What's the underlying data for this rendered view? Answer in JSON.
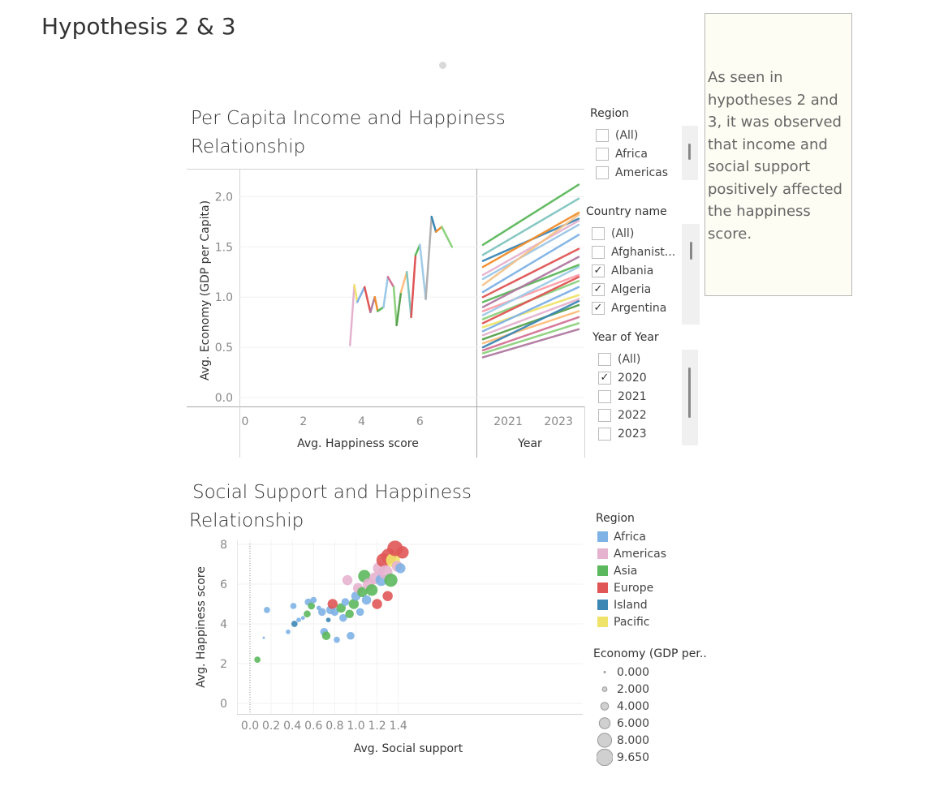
{
  "page": {
    "title": "Hypothesis 2 & 3",
    "note": "As seen in hypotheses 2 and 3, it was observed that income and social support positively affected the happiness score."
  },
  "chart1": {
    "title_line1": "Per Capita Income and Happiness",
    "title_line2": "Relationship",
    "ylabel": "Avg. Economy (GDP per Capita)",
    "xlabel_left": "Avg. Happiness score",
    "xlabel_right": "Year",
    "yticks": [
      "2.0",
      "1.5",
      "1.0",
      "0.5",
      "0.0"
    ],
    "xticks_left": [
      "0",
      "2",
      "4",
      "6"
    ],
    "xticks_right": [
      "2021",
      "2023"
    ]
  },
  "chart2": {
    "title_line1": "Social Support and Happiness",
    "title_line2": "Relationship",
    "ylabel": "Avg. Happiness score",
    "xlabel": "Avg. Social support",
    "yticks": [
      "8",
      "6",
      "4",
      "2",
      "0"
    ],
    "xticks": [
      "0.0",
      "0.2",
      "0.4",
      "0.6",
      "0.8",
      "1.0",
      "1.2",
      "1.4"
    ]
  },
  "filters": {
    "region": {
      "title": "Region",
      "items": [
        {
          "label": "(All)",
          "checked": false
        },
        {
          "label": "Africa",
          "checked": false
        },
        {
          "label": "Americas",
          "checked": false
        }
      ]
    },
    "country": {
      "title": "Country name",
      "items": [
        {
          "label": "(All)",
          "checked": false
        },
        {
          "label": "Afghanist...",
          "checked": false
        },
        {
          "label": "Albania",
          "checked": true
        },
        {
          "label": "Algeria",
          "checked": true
        },
        {
          "label": "Argentina",
          "checked": true
        }
      ]
    },
    "year": {
      "title": "Year of Year",
      "items": [
        {
          "label": "(All)",
          "checked": false
        },
        {
          "label": "2020",
          "checked": true
        },
        {
          "label": "2021",
          "checked": false
        },
        {
          "label": "2022",
          "checked": false
        },
        {
          "label": "2023",
          "checked": false
        }
      ]
    }
  },
  "legend_region": {
    "title": "Region",
    "items": [
      {
        "label": "Africa",
        "color": "#7fb2e5"
      },
      {
        "label": "Americas",
        "color": "#e5b3cf"
      },
      {
        "label": "Asia",
        "color": "#5cb85c"
      },
      {
        "label": "Europe",
        "color": "#e05656"
      },
      {
        "label": "Island",
        "color": "#3d87b5"
      },
      {
        "label": "Pacific",
        "color": "#f0e36a"
      }
    ]
  },
  "legend_size": {
    "title": "Economy (GDP per..",
    "items": [
      {
        "label": "0.000",
        "value": 0
      },
      {
        "label": "2.000",
        "value": 2
      },
      {
        "label": "4.000",
        "value": 4
      },
      {
        "label": "6.000",
        "value": 6
      },
      {
        "label": "8.000",
        "value": 8
      },
      {
        "label": "9.650",
        "value": 9.65
      }
    ]
  },
  "chart_data": [
    {
      "type": "line",
      "title": "Per Capita Income and Happiness Relationship",
      "xlabel": "Avg. Happiness score",
      "ylabel": "Avg. Economy (GDP per Capita)",
      "xlim": [
        0,
        7.8
      ],
      "ylim": [
        0,
        2.1
      ],
      "points": [
        [
          3.6,
          0.52
        ],
        [
          3.75,
          1.12
        ],
        [
          3.85,
          0.95
        ],
        [
          4.1,
          1.1
        ],
        [
          4.3,
          0.85
        ],
        [
          4.45,
          1.0
        ],
        [
          4.55,
          0.86
        ],
        [
          4.75,
          0.9
        ],
        [
          4.9,
          1.2
        ],
        [
          5.1,
          1.1
        ],
        [
          5.2,
          0.72
        ],
        [
          5.35,
          1.05
        ],
        [
          5.55,
          1.25
        ],
        [
          5.7,
          0.8
        ],
        [
          5.85,
          1.42
        ],
        [
          6.0,
          1.52
        ],
        [
          6.2,
          0.98
        ],
        [
          6.4,
          1.8
        ],
        [
          6.55,
          1.65
        ],
        [
          6.75,
          1.7
        ],
        [
          7.1,
          1.5
        ]
      ]
    },
    {
      "type": "line",
      "title": "",
      "xlabel": "Year",
      "ylabel": "",
      "x": [
        2020,
        2023.8
      ],
      "ylim": [
        0,
        2.1
      ],
      "series": [
        {
          "values": [
            1.52,
            2.12
          ],
          "color": "#5cb85c"
        },
        {
          "values": [
            1.42,
            1.98
          ],
          "color": "#80c5c0"
        },
        {
          "values": [
            1.36,
            1.78
          ],
          "color": "#3d87b5"
        },
        {
          "values": [
            1.3,
            1.84
          ],
          "color": "#f28e2b"
        },
        {
          "values": [
            1.22,
            1.76
          ],
          "color": "#e5b3cf"
        },
        {
          "values": [
            1.18,
            1.72
          ],
          "color": "#9bc7e8"
        },
        {
          "values": [
            1.12,
            1.82
          ],
          "color": "#f5c28a"
        },
        {
          "values": [
            1.05,
            1.62
          ],
          "color": "#7fb2e5"
        },
        {
          "values": [
            1.0,
            1.48
          ],
          "color": "#e05656"
        },
        {
          "values": [
            0.95,
            1.32
          ],
          "color": "#5cb85c"
        },
        {
          "values": [
            0.9,
            1.4
          ],
          "color": "#b07aa1"
        },
        {
          "values": [
            0.86,
            1.22
          ],
          "color": "#ff9da7"
        },
        {
          "values": [
            0.82,
            1.3
          ],
          "color": "#a0cbe8"
        },
        {
          "values": [
            0.78,
            1.16
          ],
          "color": "#8cd17d"
        },
        {
          "values": [
            0.74,
            1.2
          ],
          "color": "#e05656"
        },
        {
          "values": [
            0.7,
            1.02
          ],
          "color": "#f0e36a"
        },
        {
          "values": [
            0.66,
            1.1
          ],
          "color": "#7fb2e5"
        },
        {
          "values": [
            0.62,
            0.98
          ],
          "color": "#e5b3cf"
        },
        {
          "values": [
            0.58,
            0.92
          ],
          "color": "#59a14f"
        },
        {
          "values": [
            0.54,
            0.86
          ],
          "color": "#ffbe7d"
        },
        {
          "values": [
            0.5,
            0.96
          ],
          "color": "#3d87b5"
        },
        {
          "values": [
            0.47,
            0.8
          ],
          "color": "#d37295"
        },
        {
          "values": [
            0.44,
            0.74
          ],
          "color": "#8cd17d"
        },
        {
          "values": [
            0.4,
            0.68
          ],
          "color": "#b07aa1"
        }
      ]
    },
    {
      "type": "scatter",
      "title": "Social Support and Happiness Relationship",
      "xlabel": "Avg. Social support",
      "ylabel": "Avg. Happiness score",
      "xlim": [
        -0.1,
        1.5
      ],
      "ylim": [
        -0.5,
        8.6
      ],
      "points": [
        {
          "x": 0.07,
          "y": 2.2,
          "region": "Asia",
          "gdp": 3
        },
        {
          "x": 0.16,
          "y": 4.7,
          "region": "Africa",
          "gdp": 3
        },
        {
          "x": 0.13,
          "y": 3.3,
          "region": "Africa",
          "gdp": 0.5
        },
        {
          "x": 0.36,
          "y": 3.6,
          "region": "Africa",
          "gdp": 2
        },
        {
          "x": 0.41,
          "y": 4.9,
          "region": "Africa",
          "gdp": 3
        },
        {
          "x": 0.42,
          "y": 4.0,
          "region": "Island",
          "gdp": 3
        },
        {
          "x": 0.46,
          "y": 4.2,
          "region": "Africa",
          "gdp": 2
        },
        {
          "x": 0.5,
          "y": 4.3,
          "region": "Africa",
          "gdp": 1.5
        },
        {
          "x": 0.55,
          "y": 5.1,
          "region": "Africa",
          "gdp": 3.5
        },
        {
          "x": 0.58,
          "y": 4.9,
          "region": "Asia",
          "gdp": 3.5
        },
        {
          "x": 0.6,
          "y": 5.2,
          "region": "Africa",
          "gdp": 3
        },
        {
          "x": 0.54,
          "y": 4.5,
          "region": "Asia",
          "gdp": 3.5
        },
        {
          "x": 0.65,
          "y": 4.8,
          "region": "Africa",
          "gdp": 2
        },
        {
          "x": 0.68,
          "y": 4.6,
          "region": "Africa",
          "gdp": 4
        },
        {
          "x": 0.7,
          "y": 3.6,
          "region": "Africa",
          "gdp": 4
        },
        {
          "x": 0.72,
          "y": 3.4,
          "region": "Asia",
          "gdp": 4.5
        },
        {
          "x": 0.74,
          "y": 4.2,
          "region": "Island",
          "gdp": 2
        },
        {
          "x": 0.76,
          "y": 4.7,
          "region": "Africa",
          "gdp": 4.5
        },
        {
          "x": 0.78,
          "y": 5.0,
          "region": "Europe",
          "gdp": 5.5
        },
        {
          "x": 0.8,
          "y": 4.6,
          "region": "Africa",
          "gdp": 4
        },
        {
          "x": 0.82,
          "y": 3.2,
          "region": "Africa",
          "gdp": 3
        },
        {
          "x": 0.86,
          "y": 4.8,
          "region": "Asia",
          "gdp": 5
        },
        {
          "x": 0.88,
          "y": 4.3,
          "region": "Africa",
          "gdp": 4
        },
        {
          "x": 0.9,
          "y": 5.1,
          "region": "Africa",
          "gdp": 4
        },
        {
          "x": 0.92,
          "y": 6.2,
          "region": "Americas",
          "gdp": 5.5
        },
        {
          "x": 0.94,
          "y": 4.5,
          "region": "Asia",
          "gdp": 4.5
        },
        {
          "x": 0.95,
          "y": 3.4,
          "region": "Africa",
          "gdp": 4
        },
        {
          "x": 0.98,
          "y": 5.0,
          "region": "Asia",
          "gdp": 5.5
        },
        {
          "x": 1.0,
          "y": 5.4,
          "region": "Africa",
          "gdp": 5
        },
        {
          "x": 1.02,
          "y": 5.8,
          "region": "Americas",
          "gdp": 5.5
        },
        {
          "x": 1.04,
          "y": 4.6,
          "region": "Africa",
          "gdp": 4
        },
        {
          "x": 1.06,
          "y": 5.6,
          "region": "Asia",
          "gdp": 5.5
        },
        {
          "x": 1.08,
          "y": 6.4,
          "region": "Asia",
          "gdp": 7
        },
        {
          "x": 1.1,
          "y": 5.2,
          "region": "Africa",
          "gdp": 5
        },
        {
          "x": 1.12,
          "y": 6.0,
          "region": "Americas",
          "gdp": 6.5
        },
        {
          "x": 1.15,
          "y": 5.7,
          "region": "Asia",
          "gdp": 6.5
        },
        {
          "x": 1.18,
          "y": 6.3,
          "region": "Americas",
          "gdp": 6.5
        },
        {
          "x": 1.2,
          "y": 5.0,
          "region": "Europe",
          "gdp": 5.5
        },
        {
          "x": 1.22,
          "y": 6.8,
          "region": "Americas",
          "gdp": 7
        },
        {
          "x": 1.24,
          "y": 6.2,
          "region": "Africa",
          "gdp": 6.5
        },
        {
          "x": 1.26,
          "y": 7.2,
          "region": "Europe",
          "gdp": 8
        },
        {
          "x": 1.28,
          "y": 6.6,
          "region": "Americas",
          "gdp": 8
        },
        {
          "x": 1.3,
          "y": 5.4,
          "region": "Europe",
          "gdp": 5.5
        },
        {
          "x": 1.31,
          "y": 7.4,
          "region": "Europe",
          "gdp": 9
        },
        {
          "x": 1.33,
          "y": 6.2,
          "region": "Asia",
          "gdp": 7.5
        },
        {
          "x": 1.35,
          "y": 7.2,
          "region": "Pacific",
          "gdp": 8
        },
        {
          "x": 1.37,
          "y": 7.8,
          "region": "Europe",
          "gdp": 9
        },
        {
          "x": 1.39,
          "y": 6.9,
          "region": "Americas",
          "gdp": 6
        },
        {
          "x": 1.42,
          "y": 6.8,
          "region": "Africa",
          "gdp": 5.5
        },
        {
          "x": 1.44,
          "y": 7.6,
          "region": "Europe",
          "gdp": 7
        }
      ]
    }
  ]
}
